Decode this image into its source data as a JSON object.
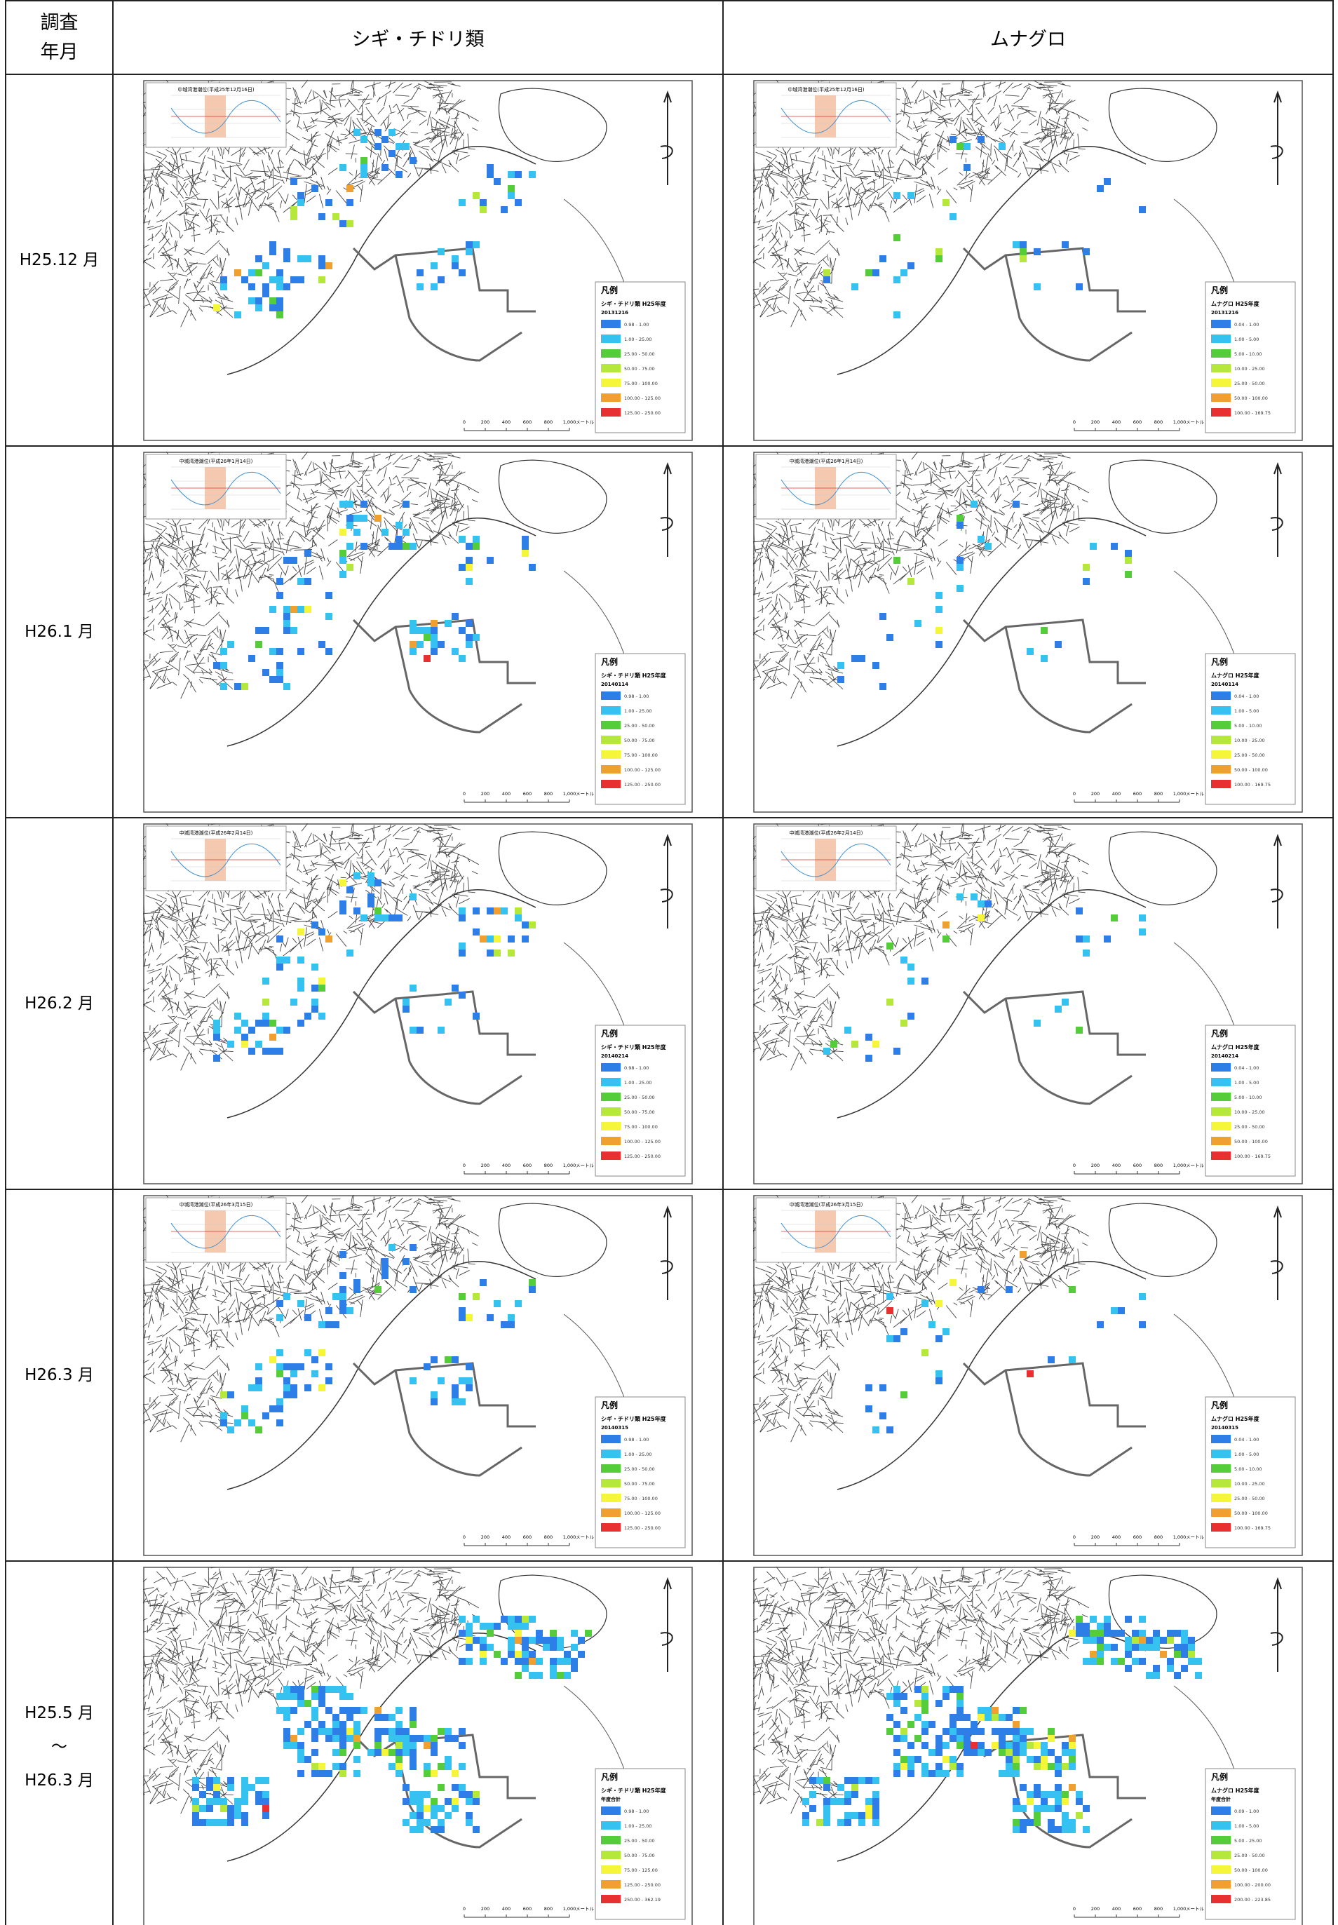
{
  "header": {
    "period": [
      "調査",
      "年月"
    ],
    "shigi": "シギ・チドリ類",
    "munaguro": "ムナグロ"
  },
  "legend_title": "凡例",
  "scale": [
    "0",
    "200",
    "400",
    "600",
    "800",
    "1,000",
    "メートル"
  ],
  "rows": [
    {
      "label": [
        "H25.12 月"
      ],
      "inset": "中城湾港潮位(平成25年12月16日)",
      "maps": [
        {
          "species": "シギ・チドリ類 H25年度",
          "date": "20131216",
          "ranges": [
            "0.98 - 1.00",
            "1.00 - 25.00",
            "25.00 - 50.00",
            "50.00 - 75.00",
            "75.00 - 100.00",
            "100.00 - 125.00",
            "125.00 - 250.00"
          ]
        },
        {
          "species": "ムナグロ H25年度",
          "date": "20131216",
          "ranges": [
            "0.04 - 1.00",
            "1.00 - 5.00",
            "5.00 - 10.00",
            "10.00 - 25.00",
            "25.00 - 50.00",
            "50.00 - 100.00",
            "100.00 - 169.75"
          ]
        }
      ]
    },
    {
      "label": [
        "H26.1 月"
      ],
      "inset": "中城湾港潮位(平成26年1月14日)",
      "maps": [
        {
          "species": "シギ・チドリ類 H25年度",
          "date": "20140114",
          "ranges": [
            "0.98 - 1.00",
            "1.00 - 25.00",
            "25.00 - 50.00",
            "50.00 - 75.00",
            "75.00 - 100.00",
            "100.00 - 125.00",
            "125.00 - 250.00"
          ]
        },
        {
          "species": "ムナグロ H25年度",
          "date": "20140114",
          "ranges": [
            "0.04 - 1.00",
            "1.00 - 5.00",
            "5.00 - 10.00",
            "10.00 - 25.00",
            "25.00 - 50.00",
            "50.00 - 100.00",
            "100.00 - 169.75"
          ]
        }
      ]
    },
    {
      "label": [
        "H26.2 月"
      ],
      "inset": "中城湾港潮位(平成26年2月14日)",
      "maps": [
        {
          "species": "シギ・チドリ類 H25年度",
          "date": "20140214",
          "ranges": [
            "0.98 - 1.00",
            "1.00 - 25.00",
            "25.00 - 50.00",
            "50.00 - 75.00",
            "75.00 - 100.00",
            "100.00 - 125.00",
            "125.00 - 250.00"
          ]
        },
        {
          "species": "ムナグロ H25年度",
          "date": "20140214",
          "ranges": [
            "0.04 - 1.00",
            "1.00 - 5.00",
            "5.00 - 10.00",
            "10.00 - 25.00",
            "25.00 - 50.00",
            "50.00 - 100.00",
            "100.00 - 169.75"
          ]
        }
      ]
    },
    {
      "label": [
        "H26.3 月"
      ],
      "inset": "中城湾港潮位(平成26年3月15日)",
      "maps": [
        {
          "species": "シギ・チドリ類 H25年度",
          "date": "20140315",
          "ranges": [
            "0.98 - 1.00",
            "1.00 - 25.00",
            "25.00 - 50.00",
            "50.00 - 75.00",
            "75.00 - 100.00",
            "100.00 - 125.00",
            "125.00 - 250.00"
          ]
        },
        {
          "species": "ムナグロ H25年度",
          "date": "20140315",
          "ranges": [
            "0.04 - 1.00",
            "1.00 - 5.00",
            "5.00 - 10.00",
            "10.00 - 25.00",
            "25.00 - 50.00",
            "50.00 - 100.00",
            "100.00 - 169.75"
          ]
        }
      ]
    },
    {
      "label": [
        "H25.5 月",
        "～",
        "H26.3 月"
      ],
      "maps": [
        {
          "species": "シギ・チドリ類 H25年度",
          "date": "年度合計",
          "ranges": [
            "0.98 - 1.00",
            "1.00 - 25.00",
            "25.00 - 50.00",
            "50.00 - 75.00",
            "75.00 - 125.00",
            "125.00 - 250.00",
            "250.00 - 362.19"
          ]
        },
        {
          "species": "ムナグロ H25年度",
          "date": "年度合計",
          "ranges": [
            "0.09 - 1.00",
            "1.00 - 5.00",
            "5.00 - 25.00",
            "25.00 - 50.00",
            "50.00 - 100.00",
            "100.00 - 200.00",
            "200.00 - 223.85"
          ]
        }
      ]
    }
  ],
  "legend_colors": [
    "#2e7ee8",
    "#36c2f0",
    "#55cc3a",
    "#b5e83a",
    "#f5f53a",
    "#f0a030",
    "#e83030"
  ]
}
